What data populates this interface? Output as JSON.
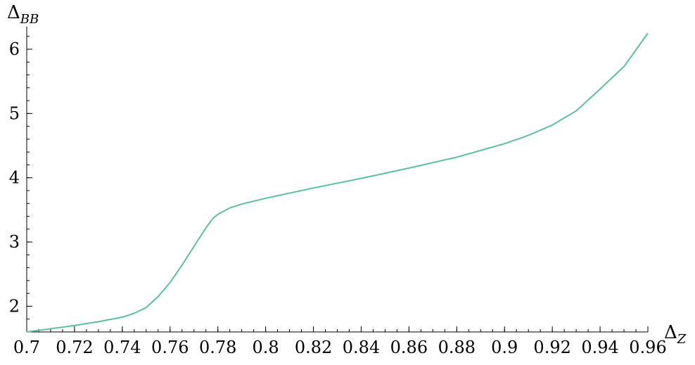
{
  "chart_data": {
    "type": "line",
    "title": "",
    "xlabel": "Δ",
    "xlabel_sub": "Z",
    "ylabel": "Δ",
    "ylabel_sub": "BB",
    "xlim": [
      0.7,
      0.96
    ],
    "ylim": [
      1.6,
      6.35
    ],
    "x_major_ticks": [
      0.7,
      0.72,
      0.74,
      0.76,
      0.78,
      0.8,
      0.82,
      0.84,
      0.86,
      0.88,
      0.9,
      0.92,
      0.94,
      0.96
    ],
    "x_tick_labels": [
      "0.7",
      "0.72",
      "0.74",
      "0.76",
      "0.78",
      "0.8",
      "0.82",
      "0.84",
      "0.86",
      "0.88",
      "0.9",
      "0.92",
      "0.94",
      "0.96"
    ],
    "x_minor_step": 0.005,
    "y_major_ticks": [
      2,
      3,
      4,
      5,
      6
    ],
    "y_tick_labels": [
      "2",
      "3",
      "4",
      "5",
      "6"
    ],
    "y_minor_step": 0.2,
    "grid": false,
    "series": [
      {
        "color": "#5cbfa0",
        "x": [
          0.7,
          0.71,
          0.72,
          0.73,
          0.74,
          0.745,
          0.75,
          0.755,
          0.76,
          0.765,
          0.77,
          0.775,
          0.778,
          0.78,
          0.785,
          0.79,
          0.8,
          0.82,
          0.84,
          0.86,
          0.88,
          0.9,
          0.91,
          0.92,
          0.93,
          0.94,
          0.95,
          0.96
        ],
        "y": [
          1.6,
          1.65,
          1.7,
          1.76,
          1.83,
          1.89,
          1.98,
          2.15,
          2.37,
          2.64,
          2.93,
          3.22,
          3.37,
          3.43,
          3.53,
          3.59,
          3.68,
          3.84,
          3.99,
          4.15,
          4.32,
          4.53,
          4.66,
          4.82,
          5.04,
          5.38,
          5.73,
          6.25
        ]
      }
    ]
  }
}
